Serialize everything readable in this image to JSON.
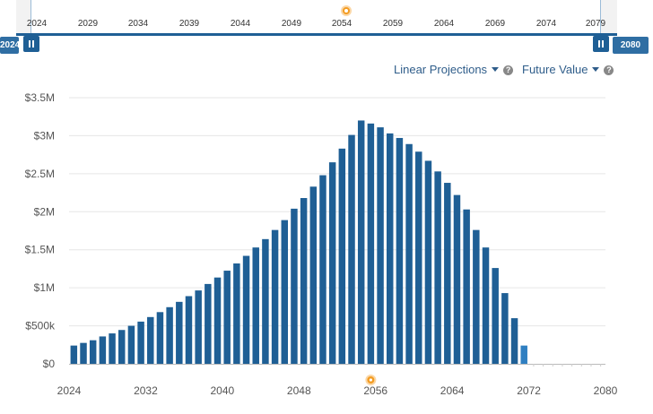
{
  "range_selector": {
    "ticks": [
      "2024",
      "2029",
      "2034",
      "2039",
      "2044",
      "2049",
      "2054",
      "2059",
      "2064",
      "2069",
      "2074",
      "2079"
    ],
    "start_label": "2024",
    "end_label": "2080"
  },
  "controls": {
    "projection_label": "Linear Projections",
    "value_label": "Future Value",
    "help_symbol": "?"
  },
  "icons": {
    "marker": "retirement-marker-icon",
    "handle": "range-handle-icon",
    "dropdown": "caret-down-icon",
    "help": "question-icon"
  },
  "colors": {
    "bar": "#1f5f95",
    "bar_highlight": "#2f7fc1",
    "marker": "#f39c22",
    "grid": "#e6e6e6"
  },
  "chart_data": {
    "type": "bar",
    "title": "",
    "xlabel": "",
    "ylabel": "Future Value",
    "xlim": [
      2024,
      2080
    ],
    "ylim": [
      0,
      3500000
    ],
    "yticks": [
      {
        "value": 0,
        "label": "$0"
      },
      {
        "value": 500000,
        "label": "$500k"
      },
      {
        "value": 1000000,
        "label": "$1M"
      },
      {
        "value": 1500000,
        "label": "$1.5M"
      },
      {
        "value": 2000000,
        "label": "$2M"
      },
      {
        "value": 2500000,
        "label": "$2.5M"
      },
      {
        "value": 3000000,
        "label": "$3M"
      },
      {
        "value": 3500000,
        "label": "$3.5M"
      }
    ],
    "xticks": [
      "2024",
      "2032",
      "2040",
      "2048",
      "2056",
      "2064",
      "2072",
      "2080"
    ],
    "x": [
      2024,
      2025,
      2026,
      2027,
      2028,
      2029,
      2030,
      2031,
      2032,
      2033,
      2034,
      2035,
      2036,
      2037,
      2038,
      2039,
      2040,
      2041,
      2042,
      2043,
      2044,
      2045,
      2046,
      2047,
      2048,
      2049,
      2050,
      2051,
      2052,
      2053,
      2054,
      2055,
      2056,
      2057,
      2058,
      2059,
      2060,
      2061,
      2062,
      2063,
      2064,
      2065,
      2066,
      2067,
      2068,
      2069,
      2070,
      2071
    ],
    "values": [
      240000,
      275000,
      310000,
      360000,
      400000,
      445000,
      500000,
      555000,
      615000,
      680000,
      745000,
      815000,
      890000,
      965000,
      1050000,
      1135000,
      1225000,
      1320000,
      1420000,
      1530000,
      1640000,
      1760000,
      1890000,
      2040000,
      2180000,
      2330000,
      2480000,
      2650000,
      2830000,
      3010000,
      3200000,
      3160000,
      3110000,
      3030000,
      2970000,
      2890000,
      2790000,
      2670000,
      2530000,
      2380000,
      2220000,
      2030000,
      1760000,
      1530000,
      1260000,
      930000,
      600000,
      240000
    ],
    "highlighted_x": [
      2071
    ],
    "marker_year": 2055
  }
}
